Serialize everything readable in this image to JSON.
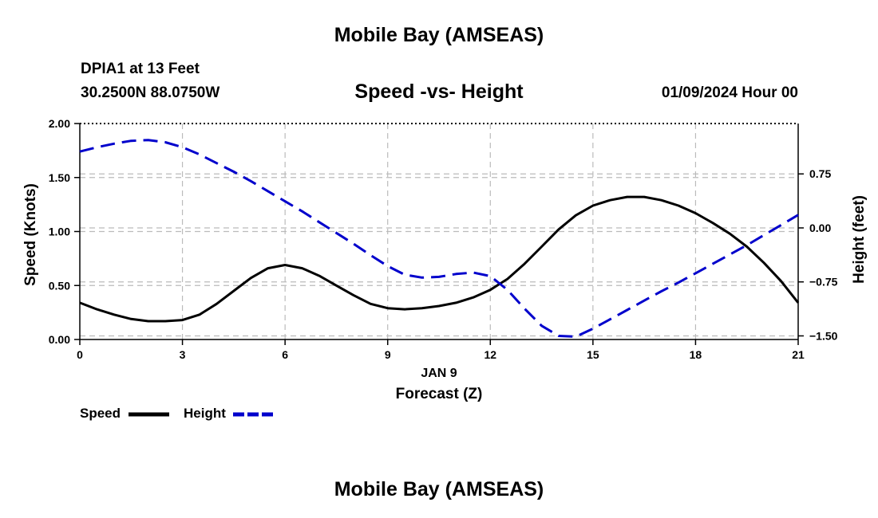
{
  "header": {
    "title": "Mobile Bay (AMSEAS)",
    "title_bottom": "Mobile Bay (AMSEAS)",
    "station": "DPIA1 at 13 Feet",
    "coords": "30.2500N  88.0750W",
    "date": "01/09/2024 Hour 00"
  },
  "legend": {
    "speed_label": "Speed",
    "height_label": "Height"
  },
  "colors": {
    "speed": "#000000",
    "height": "#0000cc",
    "grid": "#bbbbbb"
  },
  "chart_data": {
    "type": "line",
    "title": "Speed -vs- Height",
    "xlabel": "Forecast (Z)",
    "xsublabel": "JAN 9",
    "ylabel": "Speed (Knots)",
    "y2label": "Height (feet)",
    "xlim": [
      0,
      21
    ],
    "ylim": [
      0,
      2
    ],
    "y2lim": [
      -1.55,
      1.45
    ],
    "xticks": [
      0,
      3,
      6,
      9,
      12,
      15,
      18,
      21
    ],
    "xtick_labels": [
      "0",
      "3",
      "6",
      "9",
      "12",
      "15",
      "18",
      "21"
    ],
    "yticks": [
      0,
      0.5,
      1,
      1.5,
      2
    ],
    "ytick_labels": [
      "0.00",
      "0.50",
      "1.00",
      "1.50",
      "2.00"
    ],
    "y2ticks": [
      -1.5,
      -0.75,
      0,
      0.75
    ],
    "y2tick_labels": [
      "−1.50",
      "−0.75",
      "0.00",
      "0.75"
    ],
    "grid": true,
    "legend_position": "bottom-left",
    "series": [
      {
        "name": "Speed",
        "axis": "left",
        "style": "solid",
        "x": [
          0,
          0.5,
          1,
          1.5,
          2,
          2.5,
          3,
          3.5,
          4,
          4.5,
          5,
          5.5,
          6,
          6.5,
          7,
          7.5,
          8,
          8.5,
          9,
          9.5,
          10,
          10.5,
          11,
          11.5,
          12,
          12.5,
          13,
          13.5,
          14,
          14.5,
          15,
          15.5,
          16,
          16.5,
          17,
          17.5,
          18,
          18.5,
          19,
          19.5,
          20,
          20.5,
          21
        ],
        "values": [
          0.34,
          0.28,
          0.23,
          0.19,
          0.17,
          0.17,
          0.18,
          0.23,
          0.33,
          0.45,
          0.57,
          0.66,
          0.69,
          0.66,
          0.59,
          0.5,
          0.41,
          0.33,
          0.29,
          0.28,
          0.29,
          0.31,
          0.34,
          0.39,
          0.46,
          0.56,
          0.7,
          0.86,
          1.02,
          1.15,
          1.24,
          1.29,
          1.32,
          1.32,
          1.29,
          1.24,
          1.17,
          1.08,
          0.98,
          0.86,
          0.71,
          0.54,
          0.34
        ]
      },
      {
        "name": "Height",
        "axis": "right",
        "style": "dashed",
        "x": [
          0,
          0.5,
          1,
          1.5,
          2,
          2.5,
          3,
          3.5,
          4,
          4.5,
          5,
          5.5,
          6,
          6.5,
          7,
          7.5,
          8,
          8.5,
          9,
          9.5,
          10,
          10.5,
          11,
          11.5,
          12,
          12.5,
          13,
          13.5,
          14,
          14.5,
          15,
          15.5,
          16,
          16.5,
          17,
          17.5,
          18,
          18.5,
          19,
          19.5,
          20,
          20.5,
          21
        ],
        "values": [
          1.06,
          1.12,
          1.17,
          1.21,
          1.22,
          1.19,
          1.12,
          1.02,
          0.9,
          0.78,
          0.65,
          0.51,
          0.37,
          0.23,
          0.08,
          -0.07,
          -0.22,
          -0.38,
          -0.53,
          -0.65,
          -0.69,
          -0.68,
          -0.64,
          -0.62,
          -0.67,
          -0.86,
          -1.12,
          -1.36,
          -1.5,
          -1.51,
          -1.4,
          -1.27,
          -1.14,
          -1.01,
          -0.88,
          -0.76,
          -0.63,
          -0.5,
          -0.37,
          -0.24,
          -0.1,
          0.04,
          0.18
        ]
      }
    ]
  }
}
